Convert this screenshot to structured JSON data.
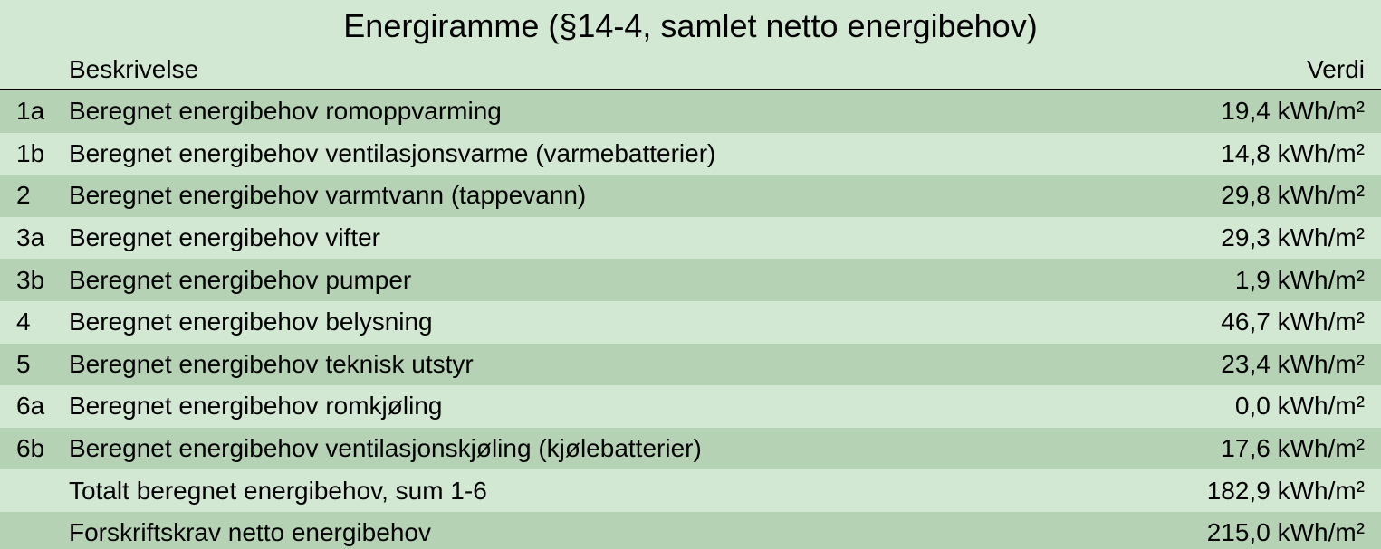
{
  "table": {
    "title": "Energiramme (§14-4, samlet netto energibehov)",
    "columns": {
      "description": "Beskrivelse",
      "value": "Verdi"
    },
    "title_fontsize": 36,
    "body_fontsize": 28,
    "colors": {
      "row_even": "#b5d3b4",
      "row_odd": "#d3e8d3",
      "background": "#d3e8d3",
      "header_border": "#000000",
      "text": "#000000"
    },
    "rows": [
      {
        "id": "1a",
        "description": "Beregnet energibehov romoppvarming",
        "value": "19,4 kWh/m²"
      },
      {
        "id": "1b",
        "description": "Beregnet energibehov ventilasjonsvarme (varmebatterier)",
        "value": "14,8 kWh/m²"
      },
      {
        "id": "2",
        "description": "Beregnet energibehov varmtvann (tappevann)",
        "value": "29,8 kWh/m²"
      },
      {
        "id": "3a",
        "description": "Beregnet energibehov vifter",
        "value": "29,3 kWh/m²"
      },
      {
        "id": "3b",
        "description": "Beregnet energibehov pumper",
        "value": "1,9 kWh/m²"
      },
      {
        "id": "4",
        "description": "Beregnet energibehov belysning",
        "value": "46,7 kWh/m²"
      },
      {
        "id": "5",
        "description": "Beregnet energibehov teknisk utstyr",
        "value": "23,4 kWh/m²"
      },
      {
        "id": "6a",
        "description": "Beregnet energibehov romkjøling",
        "value": "0,0 kWh/m²"
      },
      {
        "id": "6b",
        "description": "Beregnet energibehov ventilasjonskjøling (kjølebatterier)",
        "value": "17,6 kWh/m²"
      },
      {
        "id": "",
        "description": "Totalt beregnet energibehov, sum 1-6",
        "value": "182,9 kWh/m²"
      },
      {
        "id": "",
        "description": "Forskriftskrav netto energibehov",
        "value": "215,0 kWh/m²"
      }
    ]
  }
}
